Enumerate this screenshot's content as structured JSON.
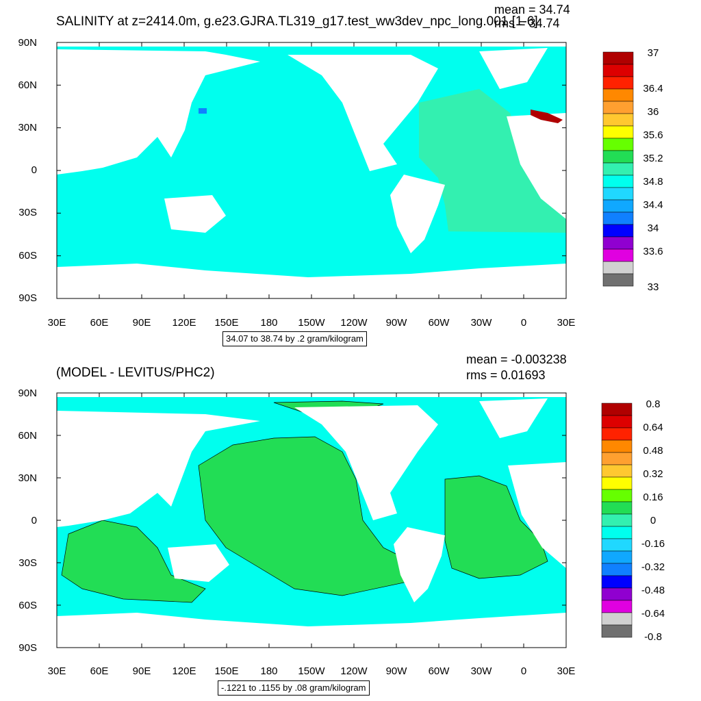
{
  "chart_data": [
    {
      "type": "heatmap",
      "title": "SALINITY at z=2414.0m, g.e23.GJRA.TL319_g17.test_ww3dev_npc_long.001 [1-6]",
      "mean_text": "mean = 34.74",
      "rms_text": "rms = 34.74",
      "xlabel": "",
      "ylabel": "",
      "x_ticks": [
        "30E",
        "60E",
        "90E",
        "120E",
        "150E",
        "180",
        "150W",
        "120W",
        "90W",
        "60W",
        "30W",
        "0",
        "30E"
      ],
      "y_ticks": [
        "90N",
        "60N",
        "30N",
        "0",
        "30S",
        "60S",
        "90S"
      ],
      "xlim": [
        30,
        390
      ],
      "ylim": [
        -90,
        90
      ],
      "contour_info": "34.07 to 38.74 by .2 gram/kilogram",
      "colorbar": {
        "labels": [
          "37",
          "36.4",
          "36",
          "35.6",
          "35.2",
          "34.8",
          "34.4",
          "34",
          "33.6",
          "33"
        ],
        "colors": [
          "#b00000",
          "#dd0000",
          "#ff2200",
          "#ff8800",
          "#ffa030",
          "#ffc830",
          "#ffff00",
          "#66ff00",
          "#22dd55",
          "#33f0b0",
          "#00ffee",
          "#20d8ff",
          "#10a8ff",
          "#1080ff",
          "#0000ff",
          "#9000d0",
          "#e000e0",
          "#d0d0d0",
          "#707070"
        ]
      }
    },
    {
      "type": "heatmap",
      "title": "(MODEL - LEVITUS/PHC2)",
      "mean_text": "mean = -0.003238",
      "rms_text": "rms = 0.01693",
      "xlabel": "",
      "ylabel": "",
      "x_ticks": [
        "30E",
        "60E",
        "90E",
        "120E",
        "150E",
        "180",
        "150W",
        "120W",
        "90W",
        "60W",
        "30W",
        "0",
        "30E"
      ],
      "y_ticks": [
        "90N",
        "60N",
        "30N",
        "0",
        "30S",
        "60S",
        "90S"
      ],
      "xlim": [
        30,
        390
      ],
      "ylim": [
        -90,
        90
      ],
      "contour_info": "-.1221 to .1155 by .08 gram/kilogram",
      "colorbar": {
        "labels": [
          "0.8",
          "0.64",
          "0.48",
          "0.32",
          "0.16",
          "0",
          "-0.16",
          "-0.32",
          "-0.48",
          "-0.64",
          "-0.8"
        ],
        "colors": [
          "#b00000",
          "#dd0000",
          "#ff2200",
          "#ff8800",
          "#ffa030",
          "#ffc830",
          "#ffff00",
          "#66ff00",
          "#22dd55",
          "#33f0b0",
          "#00ffee",
          "#20d8ff",
          "#10a8ff",
          "#1080ff",
          "#0000ff",
          "#9000d0",
          "#e000e0",
          "#d0d0d0",
          "#707070"
        ]
      }
    }
  ],
  "colors": {
    "ocean_top": "#00ffee",
    "atlantic_top": "#33f0b0",
    "ocean_bottom": "#00ffee",
    "anomaly_green": "#22dd55",
    "land": "#ffffff"
  }
}
